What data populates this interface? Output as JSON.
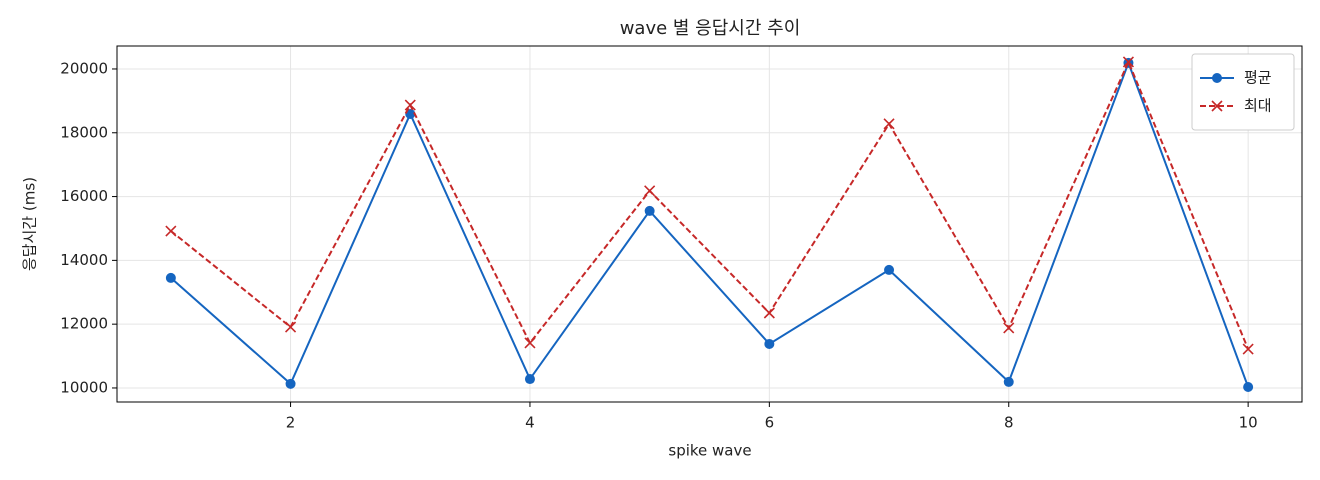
{
  "chart_data": {
    "type": "line",
    "title": "wave 별 응답시간 추이",
    "xlabel": "spike wave",
    "ylabel": "응답시간 (ms)",
    "x": [
      1,
      2,
      3,
      4,
      5,
      6,
      7,
      8,
      9,
      10
    ],
    "series": [
      {
        "name": "평균",
        "color": "#1565c0",
        "marker": "o",
        "linestyle": "solid",
        "values": [
          13450,
          10130,
          18590,
          10280,
          15550,
          11380,
          13700,
          10190,
          20190,
          10030
        ]
      },
      {
        "name": "최대",
        "color": "#c62828",
        "marker": "x",
        "linestyle": "dashed",
        "values": [
          14920,
          11910,
          18870,
          11410,
          16180,
          12350,
          18280,
          11880,
          20220,
          11220
        ]
      }
    ],
    "xlim": [
      0.55,
      10.45
    ],
    "xticks": [
      2,
      4,
      6,
      8,
      10
    ],
    "ylim": [
      9560,
      20720
    ],
    "yticks": [
      10000,
      12000,
      14000,
      16000,
      18000,
      20000
    ],
    "grid": true,
    "legend": "upper right"
  }
}
